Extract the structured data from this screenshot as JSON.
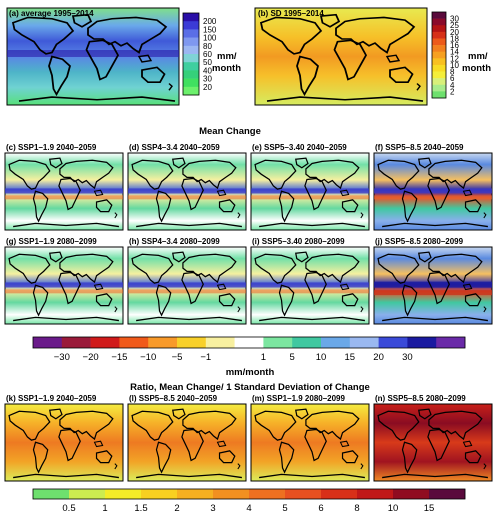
{
  "top_row": [
    {
      "label": "(a) average 1995–2014",
      "ticks": [
        "200",
        "150",
        "100",
        "80",
        "60",
        "50",
        "40",
        "30",
        "20"
      ],
      "colors": [
        "#2a0fa8",
        "#3b3bd6",
        "#5a6ee6",
        "#7f98ef",
        "#9cb7f2",
        "#7fd3d6",
        "#3fcf9f",
        "#35d07a",
        "#40e060",
        "#6cf06c"
      ],
      "unit_line1": "mm/",
      "unit_line2": "month"
    },
    {
      "label": "(b) SD 1995–2014",
      "ticks": [
        "30",
        "25",
        "20",
        "18",
        "16",
        "14",
        "12",
        "10",
        "8",
        "6",
        "4",
        "2"
      ],
      "colors": [
        "#5a0a3c",
        "#8a0a2a",
        "#b41414",
        "#d63018",
        "#ec5a1a",
        "#f2801e",
        "#f6a020",
        "#f8c020",
        "#f8dc24",
        "#f4ee3a",
        "#d8f07a",
        "#a8ec8c",
        "#6ee06e"
      ],
      "unit_line1": "mm/",
      "unit_line2": "month"
    }
  ],
  "mean_change": {
    "title": "Mean Change",
    "row1": [
      "(c) SSP1–1.9 2040–2059",
      "(d) SSP4–3.4 2040–2059",
      "(e) SSP5–3.40 2040–2059",
      "(f) SSP5–8.5 2040–2059"
    ],
    "row2": [
      "(g) SSP1–1.9 2080–2099",
      "(h) SSP4–3.4 2080–2099",
      "(i) SSP5–3.40 2080–2099",
      "(j) SSP5–8.5 2080–2099"
    ],
    "colorbar": {
      "colors": [
        "#6a1a8a",
        "#9a1a3a",
        "#d01a1a",
        "#f05a1a",
        "#f89a2a",
        "#f8d02a",
        "#f8f0a0",
        "#ffffff",
        "#7ce6a0",
        "#40c8a0",
        "#6aa8e8",
        "#9ab8f0",
        "#3a4ad8",
        "#1a1aa0",
        "#6a2aa8"
      ],
      "ticks": [
        "−30",
        "−20",
        "−15",
        "−10",
        "−5",
        "−1",
        "1",
        "5",
        "10",
        "15",
        "20",
        "30"
      ],
      "unit": "mm/month"
    }
  },
  "ratio": {
    "title": "Ratio, Mean Change/ 1 Standard Deviation of Change",
    "row": [
      "(k) SSP1–1.9 2040–2059",
      "(l) SSP5–8.5 2040–2059",
      "(m) SSP1–1.9 2080–2099",
      "(n) SSP5–8.5 2080–2099"
    ],
    "colorbar": {
      "colors": [
        "#6ee06e",
        "#ccec50",
        "#f4ec28",
        "#f8d020",
        "#f6b020",
        "#f29020",
        "#ee7020",
        "#e85020",
        "#d83018",
        "#c01818",
        "#900c20",
        "#5a0a3c"
      ],
      "ticks": [
        "0.5",
        "1",
        "1.5",
        "2",
        "3",
        "4",
        "5",
        "6",
        "8",
        "10",
        "15"
      ]
    }
  }
}
